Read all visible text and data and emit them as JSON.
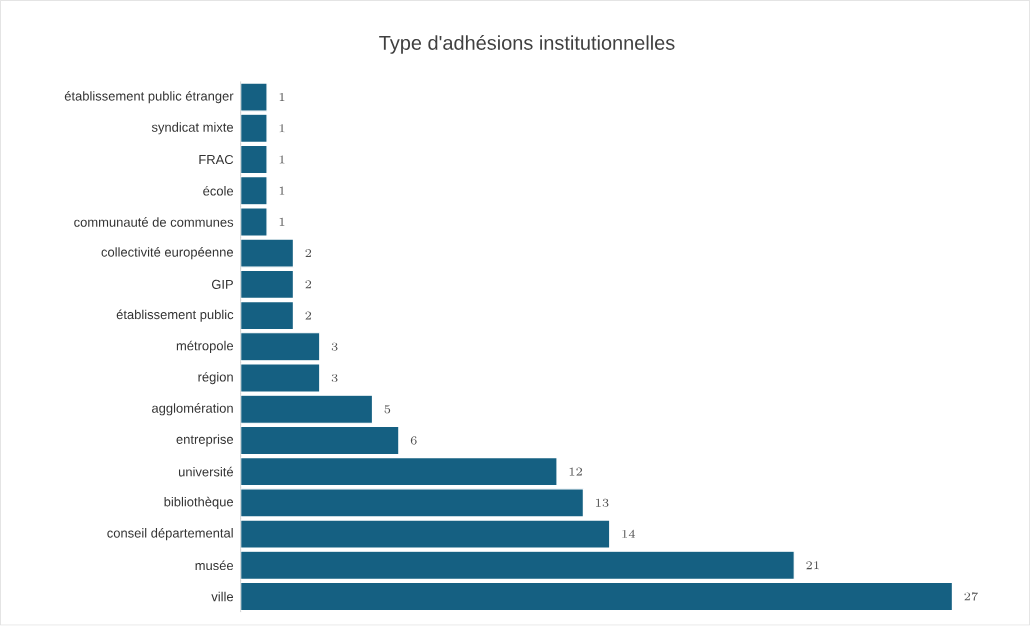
{
  "chart_data": {
    "type": "bar",
    "orientation": "horizontal",
    "title": "Type d'adhésions institutionnelles",
    "categories": [
      "établissement public étranger",
      "syndicat mixte",
      "FRAC",
      "école",
      "communauté de communes",
      "collectivité européenne",
      "GIP",
      "établissement public",
      "métropole",
      "région",
      "agglomération",
      "entreprise",
      "université",
      "bibliothèque",
      "conseil départemental",
      "musée",
      "ville"
    ],
    "values": [
      1,
      1,
      1,
      1,
      1,
      2,
      2,
      2,
      3,
      3,
      5,
      6,
      12,
      13,
      14,
      21,
      27
    ],
    "color": "#156082",
    "tick_labels": "y",
    "data_labels": true
  }
}
